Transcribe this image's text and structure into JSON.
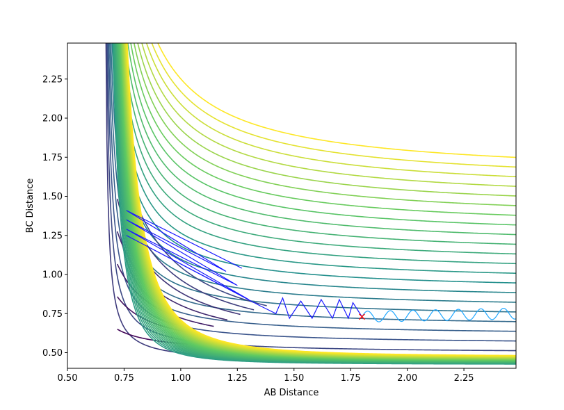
{
  "chart_data": {
    "type": "contour",
    "title": "",
    "xlabel": "AB Distance",
    "ylabel": "BC Distance",
    "xlim": [
      0.5,
      2.48
    ],
    "ylim": [
      0.4,
      2.48
    ],
    "grid": false,
    "x_ticks": [
      {
        "value": 0.5,
        "label": "0.50"
      },
      {
        "value": 0.75,
        "label": "0.75"
      },
      {
        "value": 1.0,
        "label": "1.00"
      },
      {
        "value": 1.25,
        "label": "1.25"
      },
      {
        "value": 1.5,
        "label": "1.50"
      },
      {
        "value": 1.75,
        "label": "1.75"
      },
      {
        "value": 2.0,
        "label": "2.00"
      },
      {
        "value": 2.25,
        "label": "2.25"
      }
    ],
    "y_ticks": [
      {
        "value": 0.5,
        "label": "0.50"
      },
      {
        "value": 0.75,
        "label": "0.75"
      },
      {
        "value": 1.0,
        "label": "1.00"
      },
      {
        "value": 1.25,
        "label": "1.25"
      },
      {
        "value": 1.5,
        "label": "1.50"
      },
      {
        "value": 1.75,
        "label": "1.75"
      },
      {
        "value": 2.0,
        "label": "2.00"
      },
      {
        "value": 2.25,
        "label": "2.25"
      }
    ],
    "contours": {
      "colormap": "viridis",
      "levels": 30,
      "surface_minimum": [
        0.74,
        0.74
      ]
    },
    "trajectories": [
      {
        "color": "#1a1aff",
        "points": [
          [
            1.27,
            1.04
          ],
          [
            0.76,
            1.41
          ],
          [
            1.2,
            1.02
          ],
          [
            0.76,
            1.35
          ],
          [
            1.25,
            0.93
          ],
          [
            0.76,
            1.29
          ],
          [
            1.3,
            0.84
          ],
          [
            0.76,
            1.25
          ],
          [
            1.35,
            0.8
          ],
          [
            1.42,
            0.75
          ],
          [
            1.45,
            0.85
          ],
          [
            1.48,
            0.72
          ],
          [
            1.53,
            0.83
          ],
          [
            1.58,
            0.72
          ],
          [
            1.62,
            0.84
          ],
          [
            1.67,
            0.72
          ],
          [
            1.7,
            0.84
          ],
          [
            1.74,
            0.72
          ],
          [
            1.76,
            0.82
          ],
          [
            1.8,
            0.73
          ]
        ]
      },
      {
        "color": "#1ea7ff",
        "points": [
          [
            1.8,
            0.73
          ],
          [
            2.48,
            0.75
          ]
        ],
        "oscillation_amplitude": 0.035,
        "oscillation_period": 0.1
      }
    ],
    "markers": [
      {
        "x": 1.8,
        "y": 0.73,
        "symbol": "x",
        "color": "#ff0000"
      }
    ]
  }
}
